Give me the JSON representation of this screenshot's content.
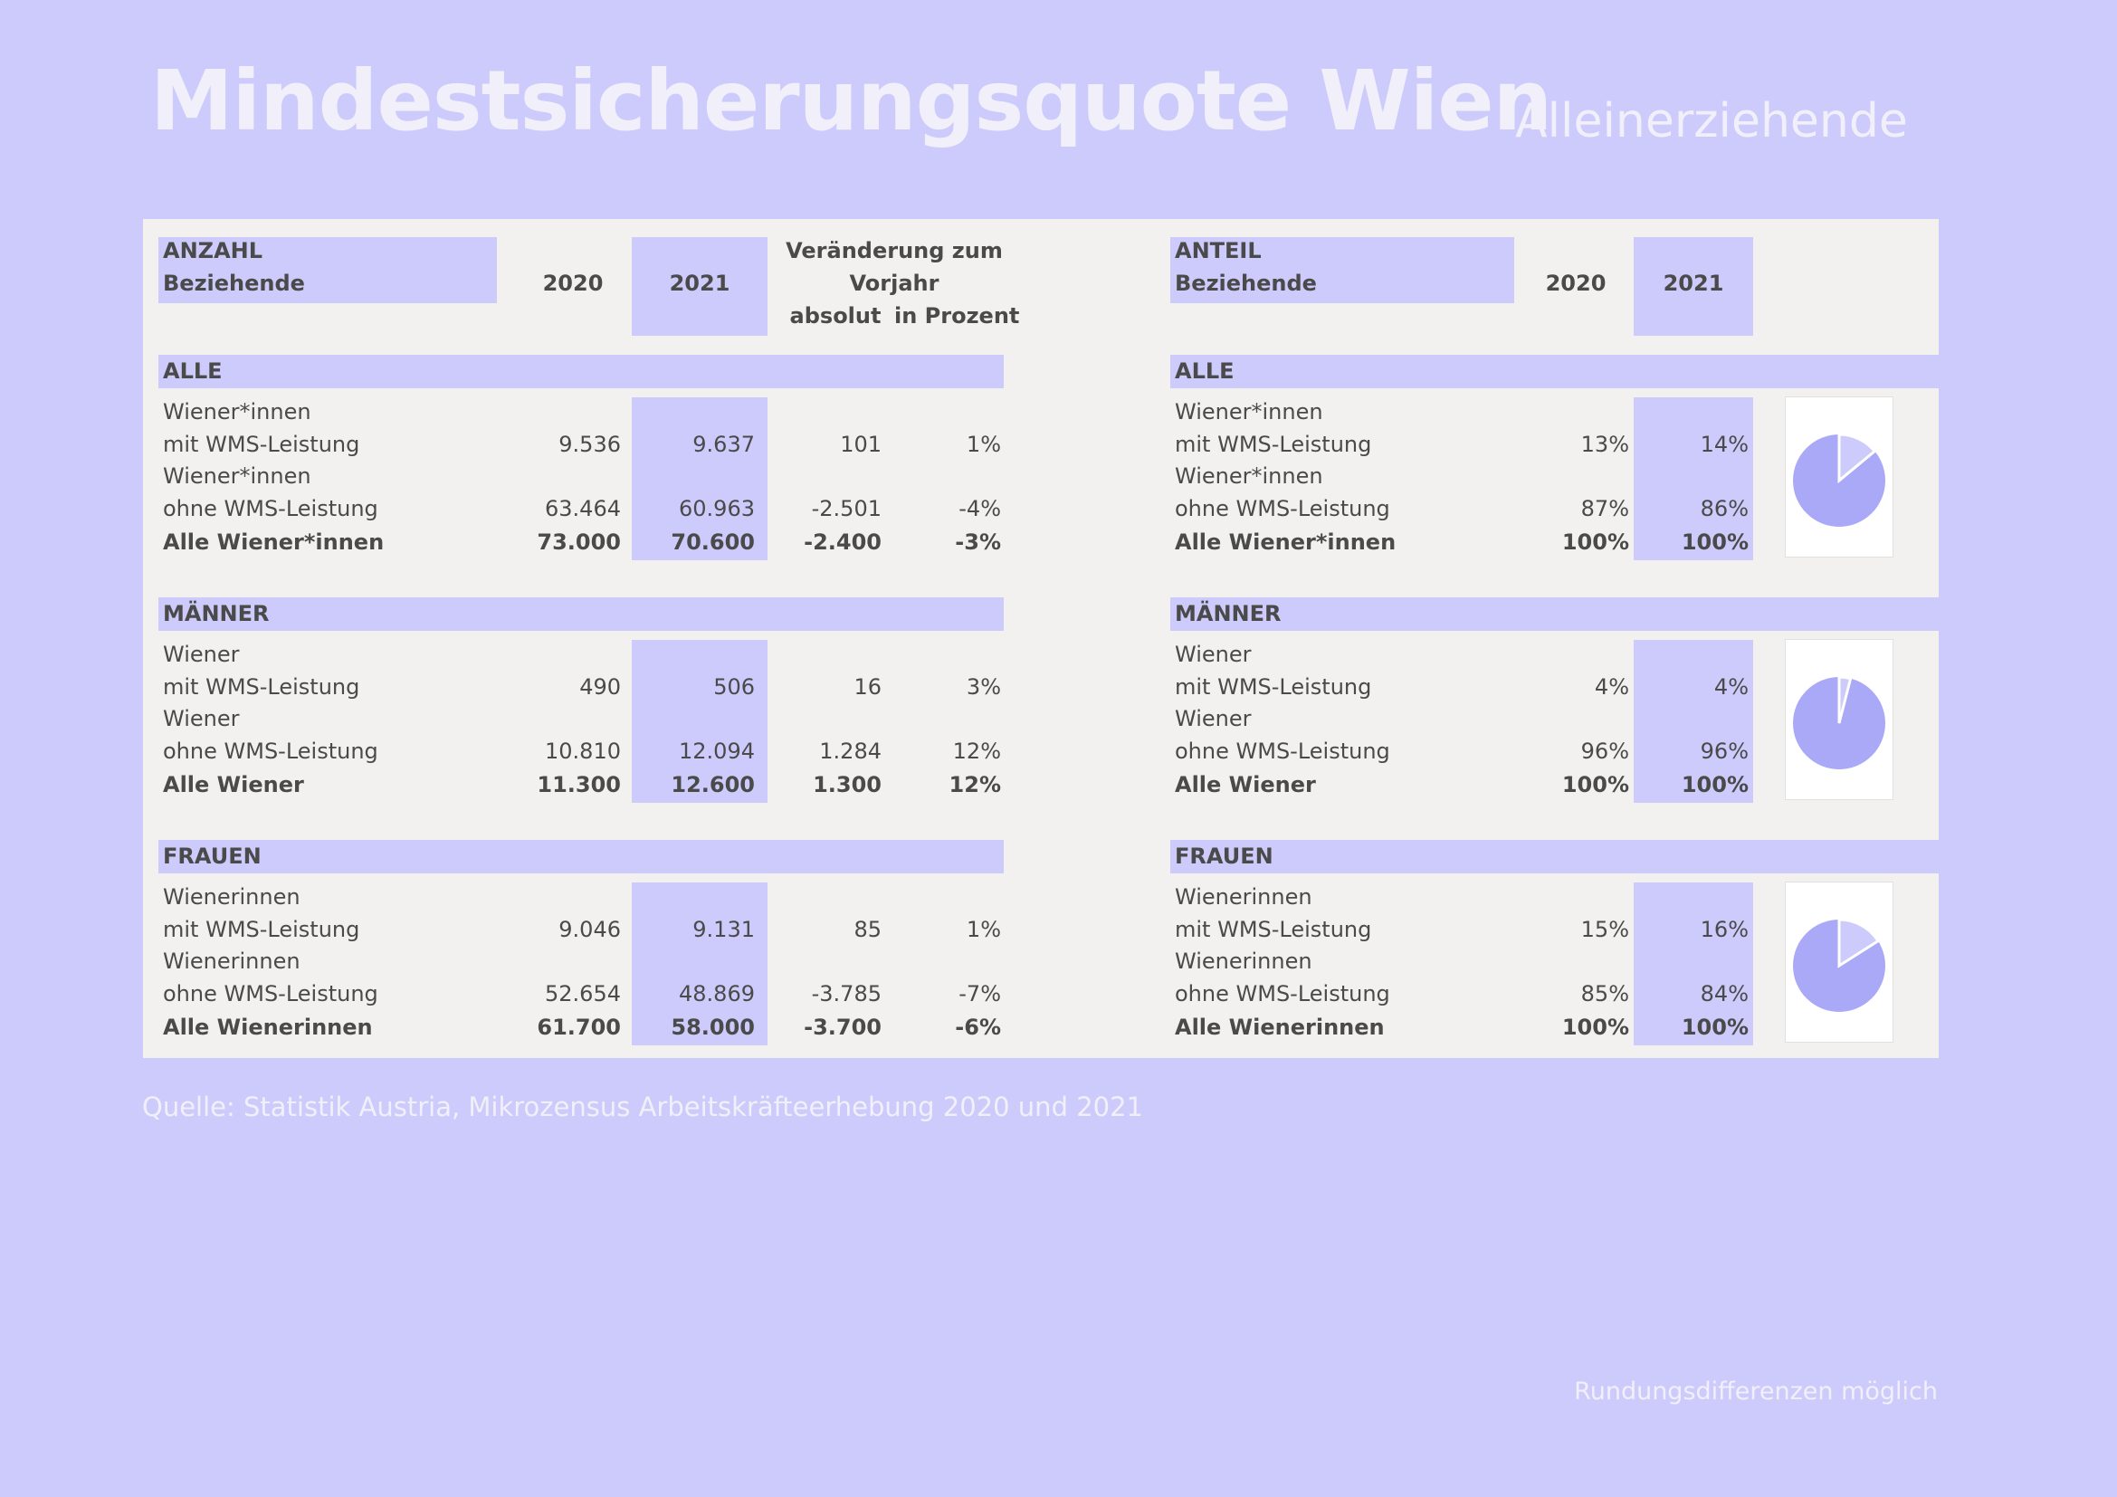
{
  "title": "Mindestsicherungsquote Wien",
  "subtitle": "Alleinerziehende",
  "source": "Quelle: Statistik Austria, Mikrozensus  Arbeitskräfteerhebung 2020 und 2021",
  "note": "Rundungsdifferenzen möglich",
  "left": {
    "header_label_1": "ANZAHL",
    "header_label_2": "Beziehende",
    "col_2020": "2020",
    "col_2021": "2021",
    "change_head_1": "Veränderung zum",
    "change_head_2": "Vorjahr",
    "col_abs": "absolut",
    "col_pct": "in Prozent",
    "sections": [
      {
        "title": "ALLE",
        "row1_a": "Wiener*innen",
        "row1_b": "mit WMS-Leistung",
        "row1": [
          "9.536",
          "9.637",
          "101",
          "1%"
        ],
        "row2_a": "Wiener*innen",
        "row2_b": "ohne WMS-Leistung",
        "row2": [
          "63.464",
          "60.963",
          "-2.501",
          "-4%"
        ],
        "total_label": "Alle Wiener*innen",
        "total": [
          "73.000",
          "70.600",
          "-2.400",
          "-3%"
        ]
      },
      {
        "title": "MÄNNER",
        "row1_a": "Wiener",
        "row1_b": "mit WMS-Leistung",
        "row1": [
          "490",
          "506",
          "16",
          "3%"
        ],
        "row2_a": "Wiener",
        "row2_b": "ohne WMS-Leistung",
        "row2": [
          "10.810",
          "12.094",
          "1.284",
          "12%"
        ],
        "total_label": "Alle Wiener",
        "total": [
          "11.300",
          "12.600",
          "1.300",
          "12%"
        ]
      },
      {
        "title": "FRAUEN",
        "row1_a": "Wienerinnen",
        "row1_b": "mit WMS-Leistung",
        "row1": [
          "9.046",
          "9.131",
          "85",
          "1%"
        ],
        "row2_a": "Wienerinnen",
        "row2_b": "ohne WMS-Leistung",
        "row2": [
          "52.654",
          "48.869",
          "-3.785",
          "-7%"
        ],
        "total_label": "Alle Wienerinnen",
        "total": [
          "61.700",
          "58.000",
          "-3.700",
          "-6%"
        ]
      }
    ]
  },
  "right": {
    "header_label_1": "ANTEIL",
    "header_label_2": "Beziehende",
    "col_2020": "2020",
    "col_2021": "2021",
    "sections": [
      {
        "title": "ALLE",
        "row1_a": "Wiener*innen",
        "row1_b": "mit WMS-Leistung",
        "row1": [
          "13%",
          "14%"
        ],
        "row2_a": "Wiener*innen",
        "row2_b": "ohne WMS-Leistung",
        "row2": [
          "87%",
          "86%"
        ],
        "total_label": "Alle Wiener*innen",
        "total": [
          "100%",
          "100%"
        ],
        "pie_share": 0.14
      },
      {
        "title": "MÄNNER",
        "row1_a": "Wiener",
        "row1_b": "mit WMS-Leistung",
        "row1": [
          "4%",
          "4%"
        ],
        "row2_a": "Wiener",
        "row2_b": "ohne WMS-Leistung",
        "row2": [
          "96%",
          "96%"
        ],
        "total_label": "Alle Wiener",
        "total": [
          "100%",
          "100%"
        ],
        "pie_share": 0.04
      },
      {
        "title": "FRAUEN",
        "row1_a": "Wienerinnen",
        "row1_b": "mit WMS-Leistung",
        "row1": [
          "15%",
          "16%"
        ],
        "row2_a": "Wienerinnen",
        "row2_b": "ohne WMS-Leistung",
        "row2": [
          "85%",
          "84%"
        ],
        "total_label": "Alle Wienerinnen",
        "total": [
          "100%",
          "100%"
        ],
        "pie_share": 0.16
      }
    ]
  },
  "colors": {
    "background": "#cccbfb",
    "panel": "#f2f1f0",
    "pie_main": "#aaa9f7",
    "pie_slice": "#cccbfb",
    "text": "#4a4a4a"
  }
}
